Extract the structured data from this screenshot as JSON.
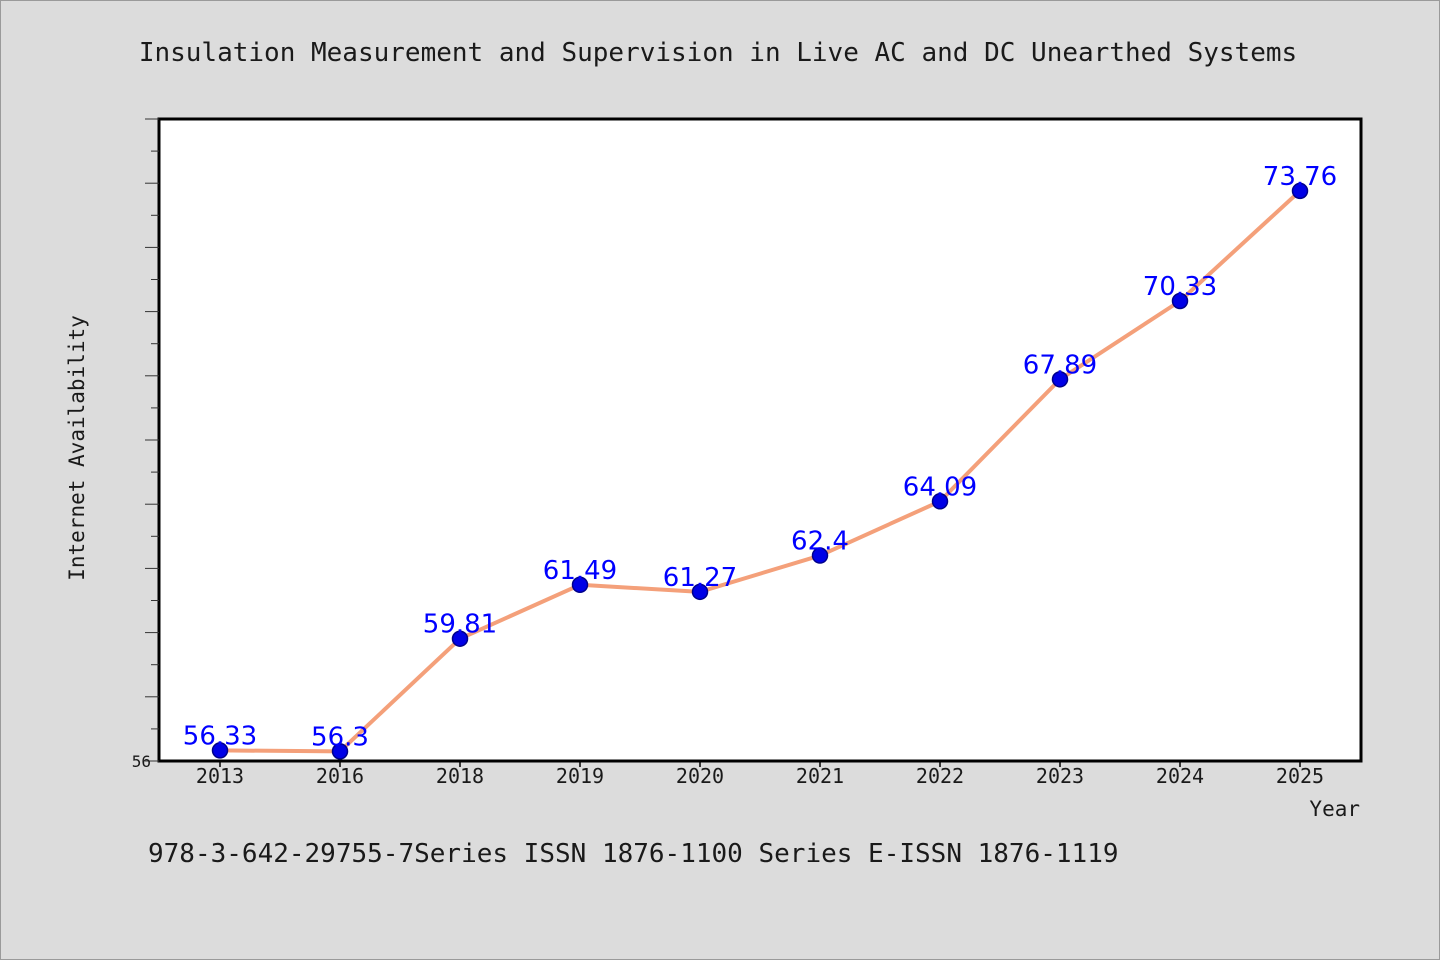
{
  "chart_data": {
    "type": "line",
    "title": "Insulation Measurement and Supervision in Live AC and DC Unearthed Systems",
    "xlabel": "Year",
    "ylabel": "Internet Availability",
    "categories": [
      "2013",
      "2016",
      "2018",
      "2019",
      "2020",
      "2021",
      "2022",
      "2023",
      "2024",
      "2025"
    ],
    "values": [
      56.33,
      56.3,
      59.81,
      61.49,
      61.27,
      62.4,
      64.09,
      67.89,
      70.33,
      73.76
    ],
    "data_labels": [
      "56.33",
      "56.3",
      "59.81",
      "61.49",
      "61.27",
      "62.4",
      "64.09",
      "67.89",
      "70.33",
      "73.76"
    ],
    "ylim": [
      56,
      76
    ],
    "y_tick_labels": [
      "56"
    ],
    "grid": false,
    "colors": {
      "line": "#f4a07a",
      "marker": "#0000e6",
      "marker_edge": "#00008b",
      "data_label": "#0000ff",
      "plot_background": "#ffffff",
      "figure_background": "#dcdcdc"
    }
  },
  "footer": {
    "text": "978-3-642-29755-7Series ISSN 1876-1100 Series E-ISSN 1876-1119"
  }
}
